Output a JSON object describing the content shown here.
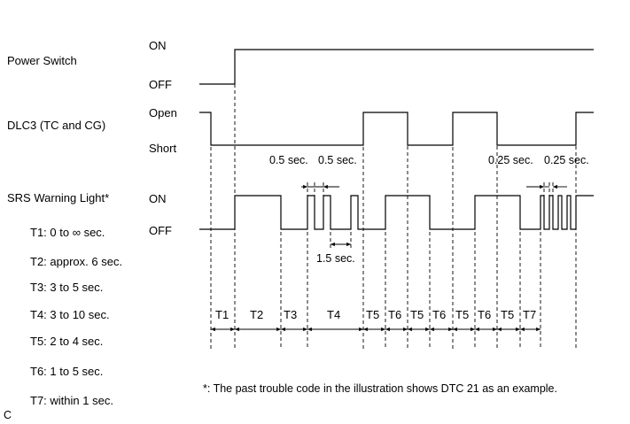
{
  "signals": [
    {
      "name": "Power Switch",
      "high_state": "ON",
      "low_state": "OFF"
    },
    {
      "name": "DLC3 (TC and CG)",
      "high_state": "Open",
      "low_state": "Short"
    },
    {
      "name": "SRS Warning Light*",
      "high_state": "ON",
      "low_state": "OFF"
    }
  ],
  "interval_annotations": {
    "dlc3_a": "0.5 sec.",
    "dlc3_b": "0.5 sec.",
    "dlc3_c": "0.25 sec.",
    "dlc3_d": "0.25 sec.",
    "light_blink": "1.5 sec."
  },
  "legend": [
    "T1: 0 to ∞ sec.",
    "T2: approx. 6 sec.",
    "T3: 3 to 5 sec.",
    "T4: 3 to 10 sec.",
    "T5: 2 to 4 sec.",
    "T6: 1 to 5 sec.",
    "T7: within 1 sec."
  ],
  "timeline_labels": [
    "T1",
    "T2",
    "T3",
    "T4",
    "T5",
    "T6",
    "T5",
    "T6",
    "T5",
    "T6",
    "T5",
    "T7"
  ],
  "footnote": "*: The past trouble code in the illustration shows DTC 21 as an example.",
  "corner_mark": "C"
}
